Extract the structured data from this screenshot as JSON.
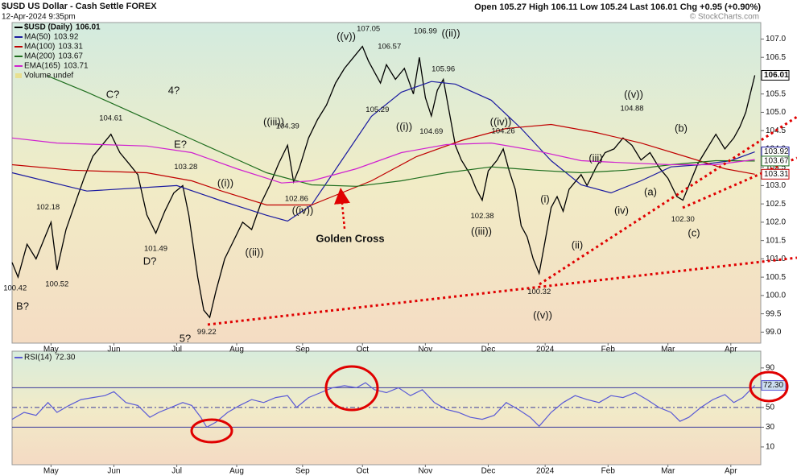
{
  "chart_data": [
    {
      "type": "line",
      "title": "$USD US Dollar - Cash Settle FOREX",
      "subtitle": "12-Apr-2024 9:35pm",
      "quote": "Open 105.27 High 106.11 Low 105.24 Last 106.01 Chg +0.95 (+0.90%)",
      "watermark": "© StockCharts.com",
      "xlim": [
        0,
        250
      ],
      "xticks": [
        {
          "value": 13,
          "label": "May"
        },
        {
          "value": 34,
          "label": "Jun"
        },
        {
          "value": 55,
          "label": "Jul"
        },
        {
          "value": 75,
          "label": "Aug"
        },
        {
          "value": 97,
          "label": "Sep"
        },
        {
          "value": 117,
          "label": "Oct"
        },
        {
          "value": 138,
          "label": "Nov"
        },
        {
          "value": 159,
          "label": "Dec"
        },
        {
          "value": 178,
          "label": "2024"
        },
        {
          "value": 199,
          "label": "Feb"
        },
        {
          "value": 219,
          "label": "Mar"
        },
        {
          "value": 240,
          "label": "Apr"
        }
      ],
      "ylim": [
        98.7,
        107.45
      ],
      "yticks": [
        {
          "value": 99,
          "label": "99.0"
        },
        {
          "value": 99.5,
          "label": "99.5"
        },
        {
          "value": 100,
          "label": "100.0"
        },
        {
          "value": 100.5,
          "label": "100.5"
        },
        {
          "value": 101,
          "label": "101.0"
        },
        {
          "value": 101.5,
          "label": "101.5"
        },
        {
          "value": 102,
          "label": "102.0"
        },
        {
          "value": 102.5,
          "label": "102.5"
        },
        {
          "value": 103,
          "label": "103.0"
        },
        {
          "value": 103.5,
          "label": "103.5"
        },
        {
          "value": 104,
          "label": "104.0"
        },
        {
          "value": 104.5,
          "label": "104.5"
        },
        {
          "value": 105,
          "label": "105.0"
        },
        {
          "value": 105.5,
          "label": "105.5"
        },
        {
          "value": 106,
          "label": "106.0"
        },
        {
          "value": 106.5,
          "label": "106.5"
        },
        {
          "value": 107,
          "label": "107.0"
        }
      ],
      "series": [
        {
          "name": "$USD (Daily)",
          "color": "#000000",
          "x": [
            0,
            2,
            5,
            8,
            11,
            13,
            15,
            18,
            21,
            24,
            27,
            30,
            33,
            36,
            39,
            42,
            45,
            48,
            51,
            54,
            57,
            59,
            62,
            64,
            66,
            68,
            71,
            74,
            77,
            80,
            83,
            86,
            89,
            92,
            94,
            96,
            99,
            102,
            105,
            108,
            111,
            114,
            117,
            119,
            121,
            123,
            125,
            128,
            131,
            134,
            136,
            138,
            140,
            142,
            144,
            146,
            148,
            150,
            153,
            155,
            157,
            159,
            162,
            164,
            166,
            168,
            170,
            172,
            174,
            176,
            178,
            180,
            182,
            184,
            186,
            188,
            190,
            192,
            195,
            198,
            201,
            204,
            207,
            210,
            213,
            216,
            219,
            222,
            224,
            226,
            229,
            232,
            235,
            238,
            241,
            243,
            245,
            248
          ],
          "values": [
            100.9,
            100.5,
            101.4,
            101.0,
            101.6,
            102.0,
            100.7,
            101.8,
            102.5,
            103.2,
            103.8,
            104.1,
            104.4,
            103.9,
            103.6,
            103.3,
            102.2,
            101.7,
            102.3,
            102.8,
            103.0,
            102.2,
            100.5,
            99.6,
            99.4,
            100.1,
            101.0,
            101.5,
            102.0,
            101.8,
            102.5,
            103.0,
            103.6,
            104.1,
            103.1,
            103.5,
            104.3,
            104.8,
            105.2,
            105.8,
            106.2,
            106.5,
            106.8,
            106.4,
            106.1,
            105.8,
            106.3,
            105.9,
            106.2,
            105.5,
            106.5,
            105.4,
            104.9,
            105.6,
            105.9,
            105.0,
            104.1,
            103.7,
            103.3,
            102.9,
            102.6,
            103.4,
            103.7,
            104.0,
            103.4,
            102.9,
            101.9,
            101.6,
            101.0,
            100.6,
            101.5,
            102.4,
            102.7,
            102.3,
            102.9,
            103.1,
            103.3,
            103.0,
            103.5,
            103.9,
            104.0,
            104.3,
            104.1,
            103.7,
            103.9,
            103.5,
            103.2,
            102.7,
            102.6,
            103.0,
            103.6,
            104.0,
            104.4,
            104.0,
            104.3,
            104.6,
            105.0,
            106.01
          ]
        },
        {
          "name": "MA(50)",
          "color": "#1a1aa0",
          "x": [
            0,
            25,
            55,
            70,
            85,
            92,
            100,
            110,
            120,
            130,
            140,
            148,
            160,
            170,
            180,
            190,
            200,
            210,
            220,
            230,
            240,
            248
          ],
          "values": [
            103.35,
            102.85,
            103.0,
            102.58,
            102.19,
            102.03,
            102.47,
            103.68,
            104.89,
            105.55,
            105.84,
            105.77,
            105.33,
            104.56,
            103.68,
            103.02,
            102.8,
            103.13,
            103.51,
            103.57,
            103.68,
            103.92
          ]
        },
        {
          "name": "MA(100)",
          "color": "#c00000",
          "x": [
            0,
            20,
            45,
            60,
            70,
            85,
            100,
            110,
            120,
            135,
            150,
            165,
            180,
            195,
            210,
            225,
            238,
            248
          ],
          "values": [
            103.57,
            103.42,
            103.35,
            103.13,
            102.85,
            102.47,
            102.47,
            102.8,
            103.13,
            103.79,
            104.23,
            104.56,
            104.67,
            104.45,
            104.16,
            103.79,
            103.46,
            103.31
          ]
        },
        {
          "name": "MA(200)",
          "color": "#1e6e1e",
          "x": [
            12,
            25,
            40,
            55,
            70,
            85,
            100,
            115,
            130,
            145,
            160,
            175,
            190,
            205,
            220,
            235,
            248
          ],
          "values": [
            105.99,
            105.55,
            105.0,
            104.45,
            103.9,
            103.35,
            103.02,
            102.98,
            103.13,
            103.35,
            103.51,
            103.42,
            103.35,
            103.42,
            103.57,
            103.68,
            103.67
          ]
        },
        {
          "name": "EMA(165)",
          "color": "#d020d0",
          "x": [
            0,
            15,
            30,
            45,
            60,
            75,
            90,
            100,
            115,
            130,
            145,
            160,
            175,
            190,
            205,
            220,
            235,
            248
          ],
          "values": [
            104.3,
            104.16,
            104.12,
            104.08,
            103.9,
            103.46,
            103.07,
            103.13,
            103.46,
            103.9,
            104.12,
            104.16,
            103.95,
            103.68,
            103.62,
            103.57,
            103.57,
            103.71
          ]
        }
      ],
      "volume": "Volume undef",
      "extremes": {
        "x": [
          1,
          12,
          15,
          33,
          48,
          58,
          65,
          92,
          95,
          119,
          122,
          126,
          140,
          138,
          144,
          157,
          164,
          176,
          207,
          224
        ],
        "values": [
          100.42,
          102.18,
          100.52,
          104.61,
          101.49,
          103.28,
          99.22,
          104.39,
          102.86,
          107.05,
          105.29,
          106.57,
          104.69,
          106.99,
          105.96,
          102.38,
          104.26,
          100.32,
          104.88,
          102.3
        ],
        "value_labels": [
          "100.42",
          "102.18",
          "100.52",
          "104.61",
          "101.49",
          "103.28",
          "99.22",
          "104.39",
          "102.86",
          "107.05",
          "105.29",
          "106.57",
          "104.69",
          "106.99",
          "105.96",
          "102.38",
          "104.26",
          "100.32",
          "104.88",
          "102.30"
        ]
      },
      "annotations": [
        "B?",
        "C?",
        "4?",
        "E?",
        "D?",
        "5?",
        "((i))",
        "((ii))",
        "((iii))",
        "((iv))",
        "((v))",
        "((i))",
        "((ii))",
        "((iii))",
        "((iv))",
        "((v))",
        "(i)",
        "(ii)",
        "(iii)",
        "(iv)",
        "((v))",
        "(a)",
        "(b)",
        "(c)",
        "Golden Cross"
      ],
      "annotation_color": "#e00000"
    },
    {
      "type": "line",
      "title": "RSI(14)",
      "xlim": [
        0,
        250
      ],
      "xticks": [
        {
          "value": 13,
          "label": "May"
        },
        {
          "value": 34,
          "label": "Jun"
        },
        {
          "value": 55,
          "label": "Jul"
        },
        {
          "value": 75,
          "label": "Aug"
        },
        {
          "value": 97,
          "label": "Sep"
        },
        {
          "value": 117,
          "label": "Oct"
        },
        {
          "value": 138,
          "label": "Nov"
        },
        {
          "value": 159,
          "label": "Dec"
        },
        {
          "value": 178,
          "label": "2024"
        },
        {
          "value": 199,
          "label": "Feb"
        },
        {
          "value": 219,
          "label": "Mar"
        },
        {
          "value": 240,
          "label": "Apr"
        }
      ],
      "ylim": [
        -8,
        107
      ],
      "yticks": [
        10,
        30,
        50,
        70,
        90
      ],
      "overbought": 70,
      "midline": 50,
      "oversold": 30,
      "series": [
        {
          "name": "RSI(14)",
          "color": "#5a5ad6",
          "x": [
            0,
            4,
            8,
            12,
            15,
            19,
            23,
            27,
            31,
            34,
            38,
            42,
            46,
            49,
            53,
            57,
            60,
            63,
            65,
            68,
            72,
            76,
            80,
            84,
            88,
            92,
            95,
            99,
            103,
            107,
            111,
            115,
            118,
            121,
            125,
            129,
            133,
            137,
            141,
            145,
            149,
            153,
            157,
            161,
            165,
            169,
            173,
            176,
            180,
            184,
            188,
            192,
            196,
            200,
            204,
            208,
            212,
            216,
            220,
            223,
            226,
            230,
            234,
            238,
            241,
            244,
            248
          ],
          "values": [
            38,
            45,
            42,
            55,
            45,
            52,
            58,
            60,
            62,
            66,
            55,
            52,
            40,
            45,
            50,
            55,
            52,
            40,
            30,
            35,
            45,
            52,
            58,
            55,
            60,
            62,
            50,
            60,
            65,
            70,
            72,
            70,
            75,
            68,
            65,
            70,
            62,
            68,
            55,
            48,
            45,
            40,
            38,
            42,
            55,
            48,
            40,
            31,
            45,
            55,
            62,
            58,
            55,
            62,
            60,
            65,
            58,
            50,
            45,
            36,
            40,
            50,
            58,
            63,
            55,
            60,
            72.3
          ],
          "value_labels": [
            null,
            null,
            null,
            null,
            null,
            null,
            null,
            null,
            null,
            null,
            null,
            null,
            null,
            null,
            null,
            null,
            null,
            null,
            null,
            null,
            null,
            null,
            null,
            null,
            null,
            null,
            null,
            null,
            null,
            null,
            null,
            null,
            null,
            null,
            null,
            null,
            null,
            null,
            null,
            null,
            null,
            null,
            null,
            null,
            null,
            null,
            null,
            null,
            null,
            null,
            null,
            null,
            null,
            null,
            null,
            null,
            null,
            null,
            null,
            null,
            null,
            null,
            null,
            null,
            null,
            null,
            "72.30"
          ]
        }
      ]
    }
  ]
}
